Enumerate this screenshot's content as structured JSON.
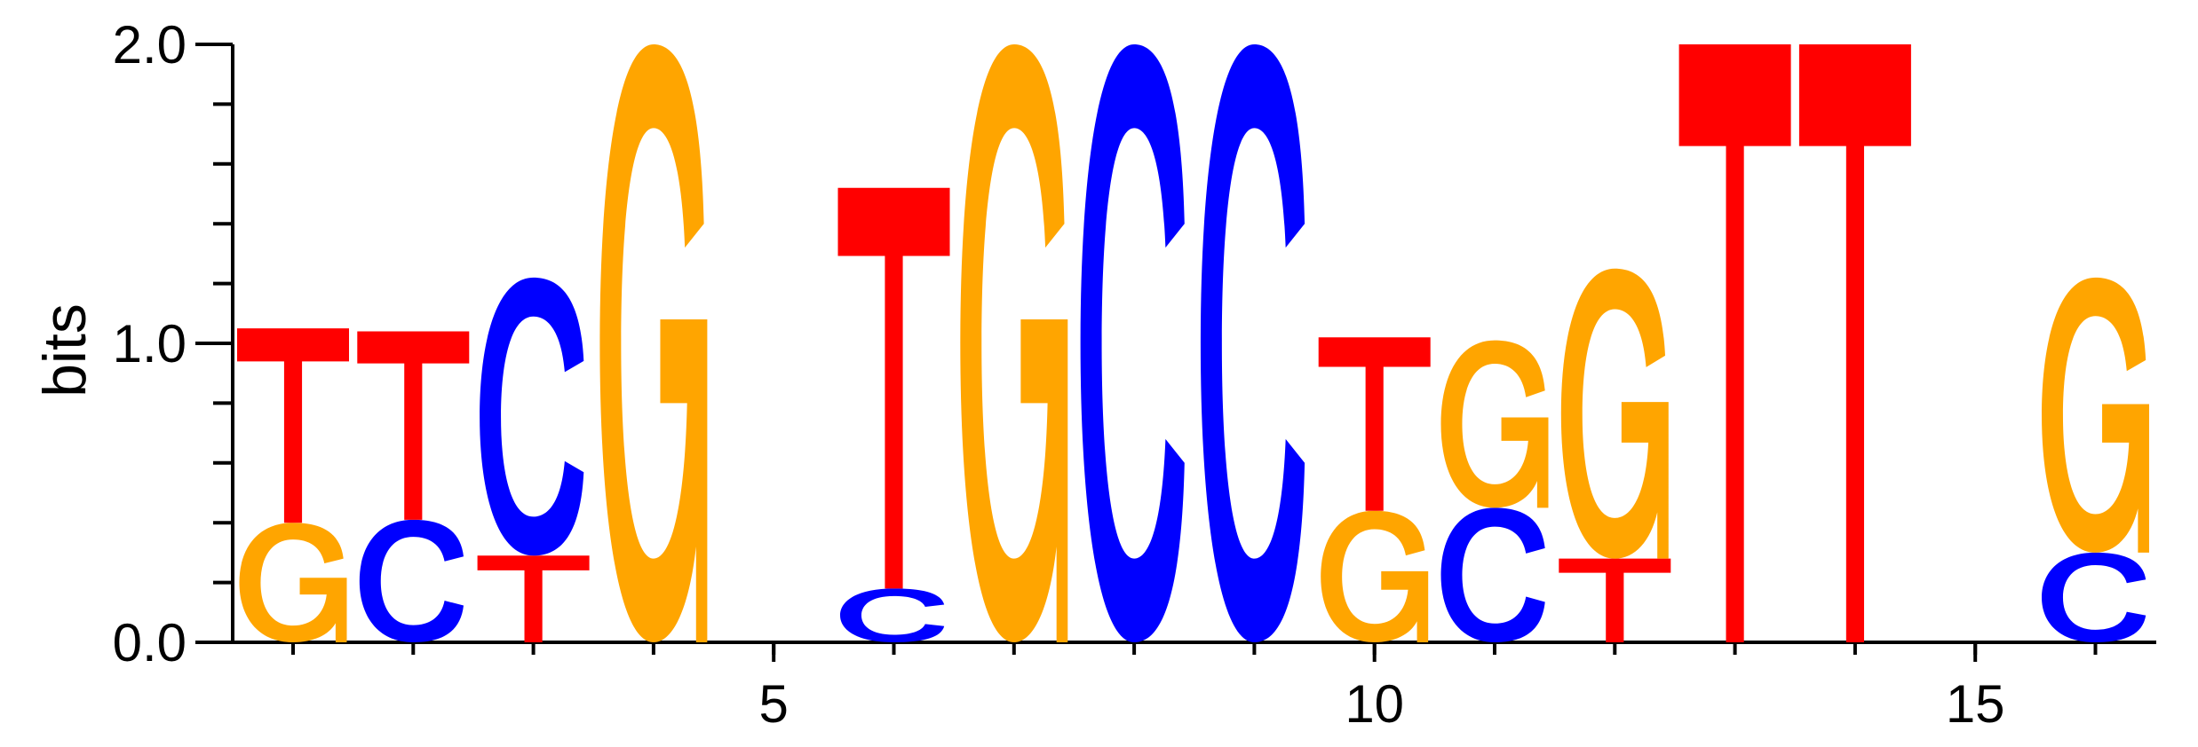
{
  "chart_data": {
    "type": "sequence-logo",
    "ylabel": "bits",
    "ylim": [
      0,
      2
    ],
    "y_ticks": [
      "0.0",
      "1.0",
      "2.0"
    ],
    "x_ticks": [
      "5",
      "10",
      "15"
    ],
    "x_tick_positions": [
      5,
      10,
      15
    ],
    "positions": [
      1,
      2,
      3,
      4,
      5,
      6,
      7,
      8,
      9,
      10,
      11,
      12,
      13,
      14,
      15,
      16
    ],
    "colors": {
      "A": "#00a000",
      "C": "#0000ff",
      "G": "#ffa500",
      "T": "#ff0000"
    },
    "columns": [
      {
        "pos": 1,
        "stack": [
          {
            "letter": "G",
            "height": 0.4
          },
          {
            "letter": "T",
            "height": 0.65
          }
        ]
      },
      {
        "pos": 2,
        "stack": [
          {
            "letter": "C",
            "height": 0.41
          },
          {
            "letter": "T",
            "height": 0.63
          }
        ]
      },
      {
        "pos": 3,
        "stack": [
          {
            "letter": "T",
            "height": 0.29
          },
          {
            "letter": "C",
            "height": 0.93
          }
        ]
      },
      {
        "pos": 4,
        "stack": [
          {
            "letter": "G",
            "height": 2.0
          }
        ]
      },
      {
        "pos": 5,
        "stack": []
      },
      {
        "pos": 6,
        "stack": [
          {
            "letter": "C",
            "height": 0.18
          },
          {
            "letter": "T",
            "height": 1.34
          }
        ]
      },
      {
        "pos": 7,
        "stack": [
          {
            "letter": "G",
            "height": 2.0
          }
        ]
      },
      {
        "pos": 8,
        "stack": [
          {
            "letter": "C",
            "height": 2.0
          }
        ]
      },
      {
        "pos": 9,
        "stack": [
          {
            "letter": "C",
            "height": 2.0
          }
        ]
      },
      {
        "pos": 10,
        "stack": [
          {
            "letter": "G",
            "height": 0.44
          },
          {
            "letter": "T",
            "height": 0.58
          }
        ]
      },
      {
        "pos": 11,
        "stack": [
          {
            "letter": "C",
            "height": 0.45
          },
          {
            "letter": "G",
            "height": 0.56
          }
        ]
      },
      {
        "pos": 12,
        "stack": [
          {
            "letter": "T",
            "height": 0.28
          },
          {
            "letter": "G",
            "height": 0.97
          }
        ]
      },
      {
        "pos": 13,
        "stack": [
          {
            "letter": "T",
            "height": 2.0
          }
        ]
      },
      {
        "pos": 14,
        "stack": [
          {
            "letter": "T",
            "height": 2.0
          }
        ]
      },
      {
        "pos": 15,
        "stack": []
      },
      {
        "pos": 16,
        "stack": [
          {
            "letter": "C",
            "height": 0.3
          },
          {
            "letter": "G",
            "height": 0.92
          }
        ]
      }
    ]
  }
}
